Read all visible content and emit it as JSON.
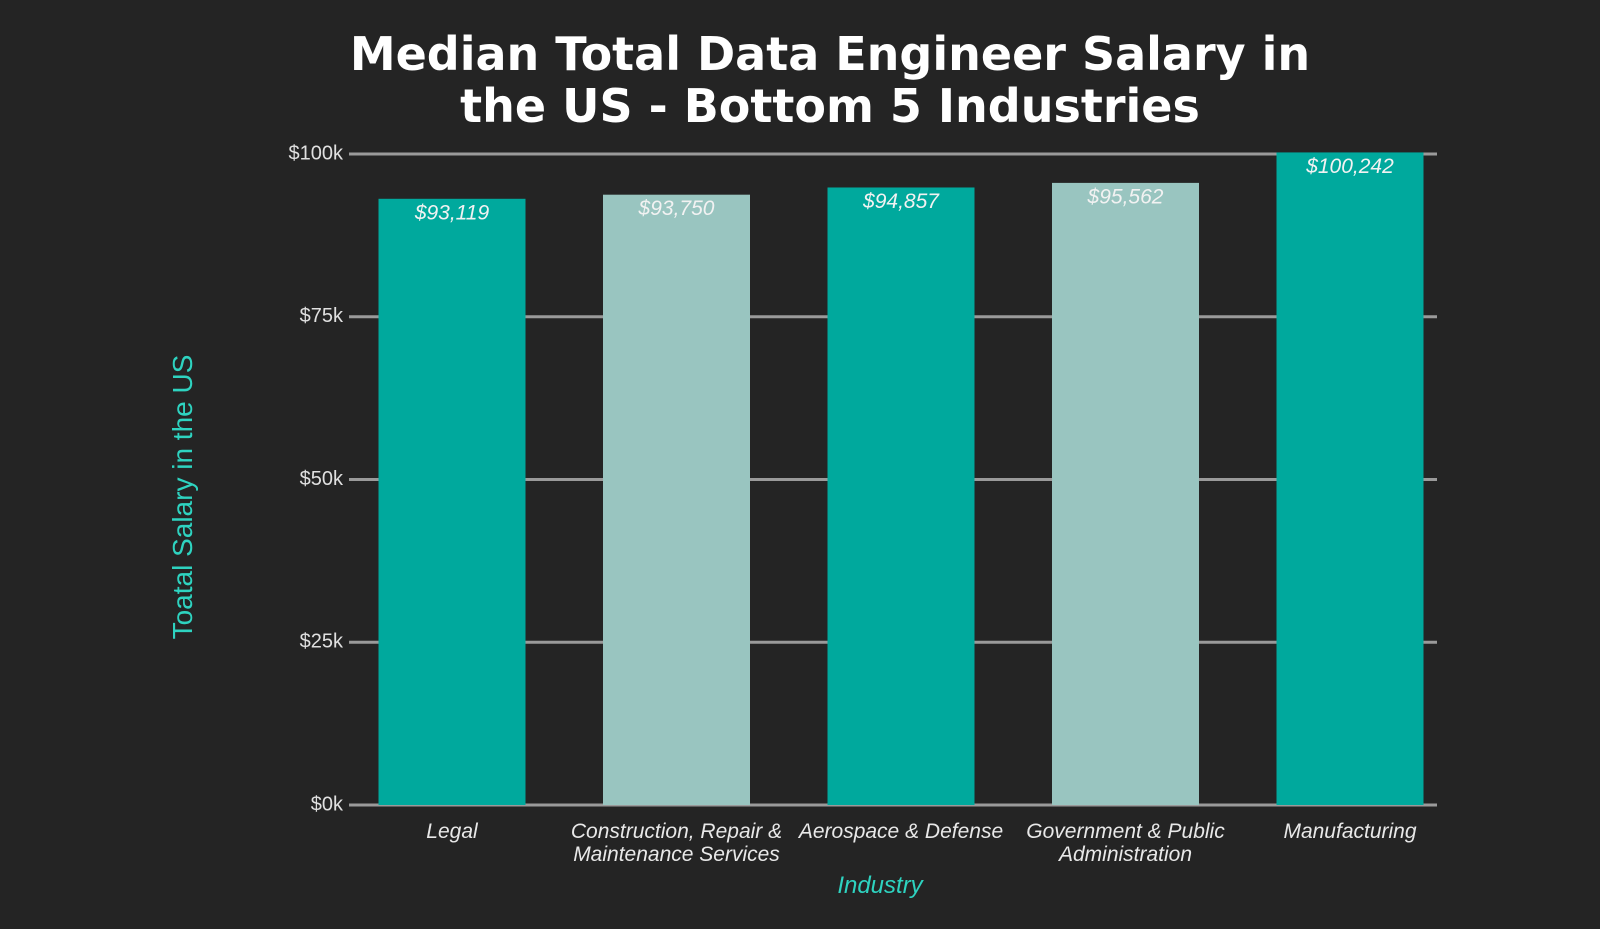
{
  "chart_data": {
    "type": "bar",
    "title": "Median Total Data Engineer Salary in the US - Bottom 5 Industries",
    "x_label": "Industry",
    "y_label": "Toatal Salary in the US",
    "categories": [
      "Legal",
      "Construction, Repair & Maintenance Services",
      "Aerospace & Defense",
      "Government & Public Administration",
      "Manufacturing"
    ],
    "values": [
      93119,
      93750,
      94857,
      95562,
      100242
    ],
    "value_labels": [
      "$93,119",
      "$93,750",
      "$94,857",
      "$95,562",
      "$100,242"
    ],
    "colors": [
      "#00a99d",
      "#99c5c0",
      "#00a99d",
      "#99c5c0",
      "#00a99d"
    ],
    "ylim": [
      0,
      100000
    ],
    "yticks": [
      {
        "value": 0,
        "label": "$0k"
      },
      {
        "value": 25000,
        "label": "$25k"
      },
      {
        "value": 50000,
        "label": "$50k"
      },
      {
        "value": 75000,
        "label": "$75k"
      },
      {
        "value": 100000,
        "label": "$100k"
      }
    ],
    "grid": true
  }
}
